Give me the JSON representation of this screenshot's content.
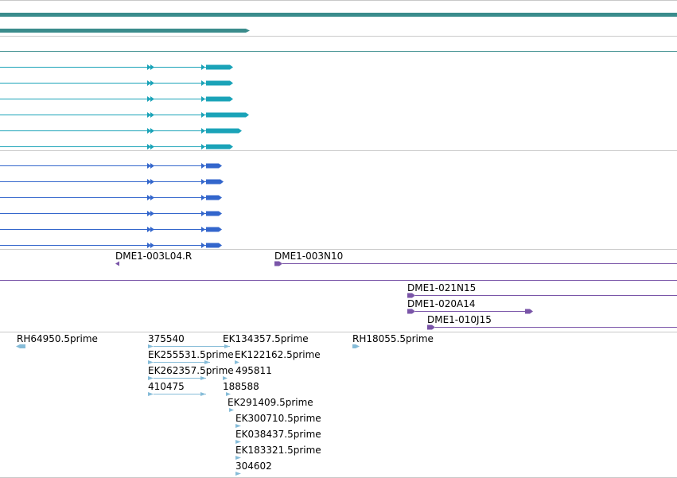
{
  "colors": {
    "background": "#ffffff",
    "separator": "#c9c9c9",
    "gene": "#3a8c8c",
    "transcript_teal": "#1aa3b8",
    "transcript_blue": "#3366cc",
    "clone": "#7a55a8",
    "est": "#86bcd8",
    "label": "#000000"
  },
  "tracks": {
    "clones_top": [
      {
        "name": "DME1-003L04.R",
        "strand": "-",
        "icon": "triangle-left-icon"
      },
      {
        "name": "DME1-003N10",
        "strand": "+",
        "icon": "triangle-right-icon"
      }
    ],
    "clones_bottom": [
      {
        "name": "DME1-021N15",
        "strand": "+",
        "icon": "triangle-right-icon"
      },
      {
        "name": "DME1-020A14",
        "strand": "+",
        "icon": "triangle-right-icon"
      },
      {
        "name": "DME1-010J15",
        "strand": "+",
        "icon": "triangle-right-icon"
      }
    ],
    "ests": [
      {
        "name": "RH64950.5prime"
      },
      {
        "name": "375540"
      },
      {
        "name": "EK134357.5prime"
      },
      {
        "name": "RH18055.5prime"
      },
      {
        "name": "EK255531.5prime"
      },
      {
        "name": "EK122162.5prime"
      },
      {
        "name": "EK262357.5prime"
      },
      {
        "name": "495811"
      },
      {
        "name": "410475"
      },
      {
        "name": "188588"
      },
      {
        "name": "EK291409.5prime"
      },
      {
        "name": "EK300710.5prime"
      },
      {
        "name": "EK038437.5prime"
      },
      {
        "name": "EK183321.5prime"
      },
      {
        "name": "304602"
      }
    ]
  }
}
